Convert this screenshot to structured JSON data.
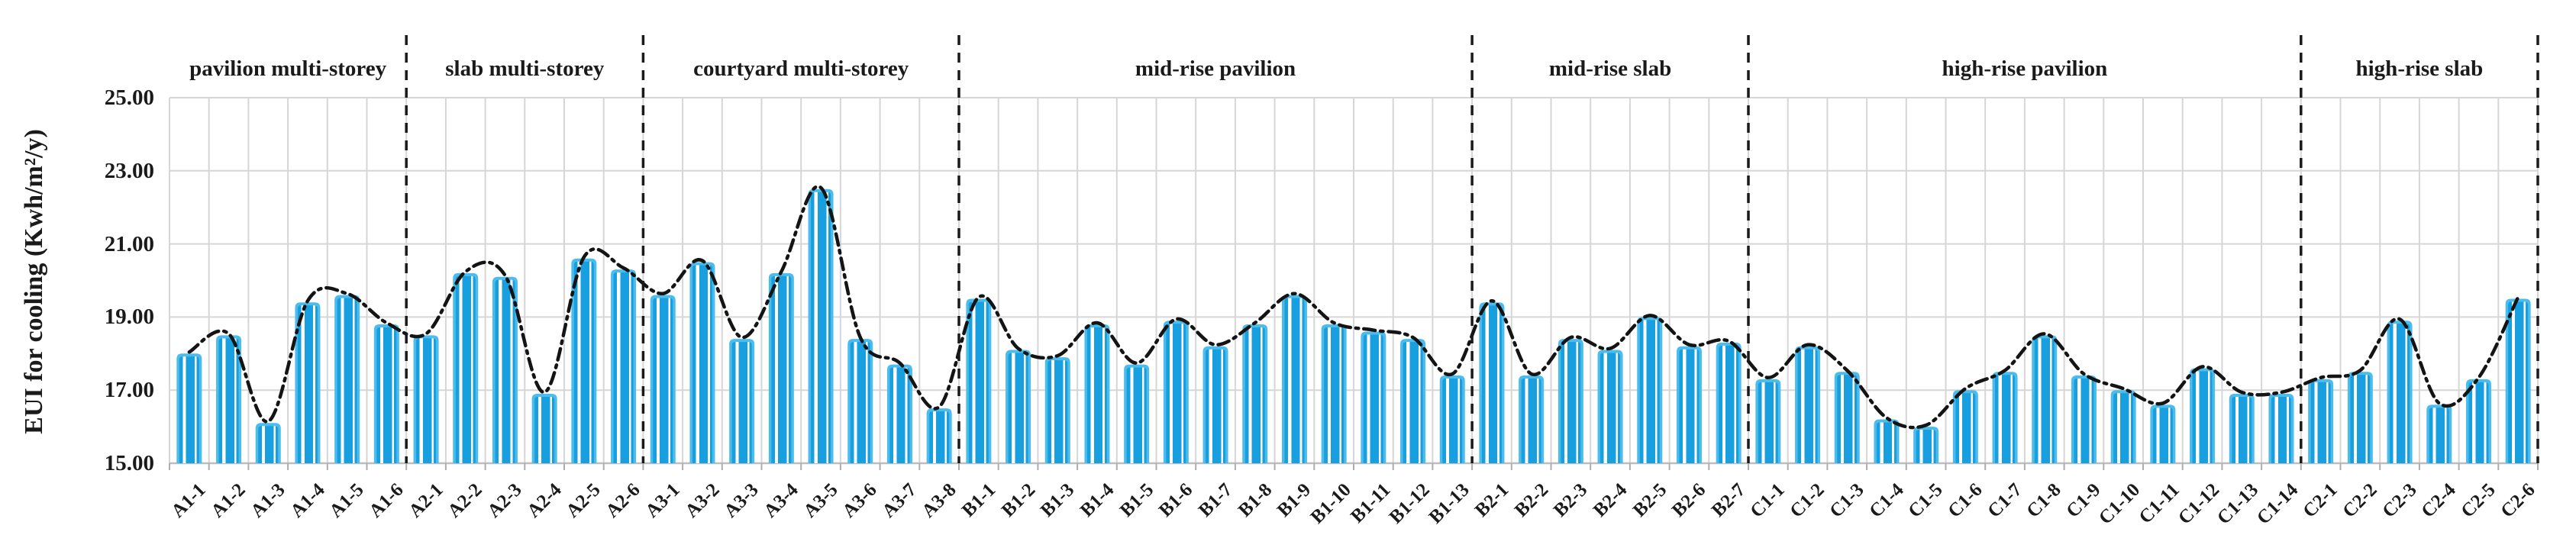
{
  "chart": {
    "y_axis_title": "EUI for cooling (Kwh/m²/y)",
    "y_tick_labels": [
      "25.00",
      "23.00",
      "21.00",
      "19.00",
      "17.00",
      "15.00"
    ],
    "colors": {
      "bar_fill": "#189FDF",
      "bar_border": "#4CBCEC",
      "bar_stripe": "#FFFFFF",
      "trend_line": "#141414",
      "gridline": "#D6D6D6",
      "axis_line": "#BDBDBD",
      "tick_mark": "#ADADAD",
      "separator": "#1A1A1A",
      "text": "#1A1A1A",
      "background": "#FFFFFF"
    }
  },
  "chart_data": {
    "type": "bar",
    "title": "",
    "xlabel": "",
    "ylabel": "EUI for cooling (Kwh/m²/y)",
    "ylim": [
      15,
      25
    ],
    "ytick_step": 2,
    "grid": true,
    "legend_position": "none",
    "overlay": "black dash-dot trend line connecting bar tops",
    "group_separators": "vertical black dashed lines between groups and at right edge",
    "groups": [
      {
        "label": "pavilion multi-storey",
        "categories": [
          "A1-1",
          "A1-2",
          "A1-3",
          "A1-4",
          "A1-5",
          "A1-6"
        ],
        "values": [
          18.0,
          18.5,
          16.1,
          19.4,
          19.6,
          18.8
        ]
      },
      {
        "label": "slab multi-storey",
        "categories": [
          "A2-1",
          "A2-2",
          "A2-3",
          "A2-4",
          "A2-5",
          "A2-6"
        ],
        "values": [
          18.5,
          20.2,
          20.1,
          16.9,
          20.6,
          20.3
        ]
      },
      {
        "label": "courtyard multi-storey",
        "categories": [
          "A3-1",
          "A3-2",
          "A3-3",
          "A3-4",
          "A3-5",
          "A3-6",
          "A3-7",
          "A3-8"
        ],
        "values": [
          19.6,
          20.5,
          18.4,
          20.2,
          22.5,
          18.4,
          17.7,
          16.5
        ]
      },
      {
        "label": "mid-rise pavilion",
        "categories": [
          "B1-1",
          "B1-2",
          "B1-3",
          "B1-4",
          "B1-5",
          "B1-6",
          "B1-7",
          "B1-8",
          "B1-9",
          "B1-10",
          "B1-11",
          "B1-12",
          "B1-13"
        ],
        "values": [
          19.5,
          18.1,
          17.9,
          18.8,
          17.7,
          18.9,
          18.2,
          18.8,
          19.6,
          18.8,
          18.6,
          18.4,
          17.4
        ]
      },
      {
        "label": "mid-rise slab",
        "categories": [
          "B2-1",
          "B2-2",
          "B2-3",
          "B2-4",
          "B2-5",
          "B2-6",
          "B2-7"
        ],
        "values": [
          19.4,
          17.4,
          18.4,
          18.1,
          19.0,
          18.2,
          18.3
        ]
      },
      {
        "label": "high-rise pavilion",
        "categories": [
          "C1-1",
          "C1-2",
          "C1-3",
          "C1-4",
          "C1-5",
          "C1-6",
          "C1-7",
          "C1-8",
          "C1-9",
          "C1-10",
          "C1-11",
          "C1-12",
          "C1-13",
          "C1-14"
        ],
        "values": [
          17.3,
          18.2,
          17.5,
          16.2,
          16.0,
          17.0,
          17.5,
          18.5,
          17.4,
          17.0,
          16.6,
          17.6,
          16.9,
          16.9
        ]
      },
      {
        "label": "high-rise slab",
        "categories": [
          "C2-1",
          "C2-2",
          "C2-3",
          "C2-4",
          "C2-5",
          "C2-6"
        ],
        "values": [
          17.3,
          17.5,
          18.9,
          16.6,
          17.3,
          19.5
        ]
      }
    ]
  }
}
